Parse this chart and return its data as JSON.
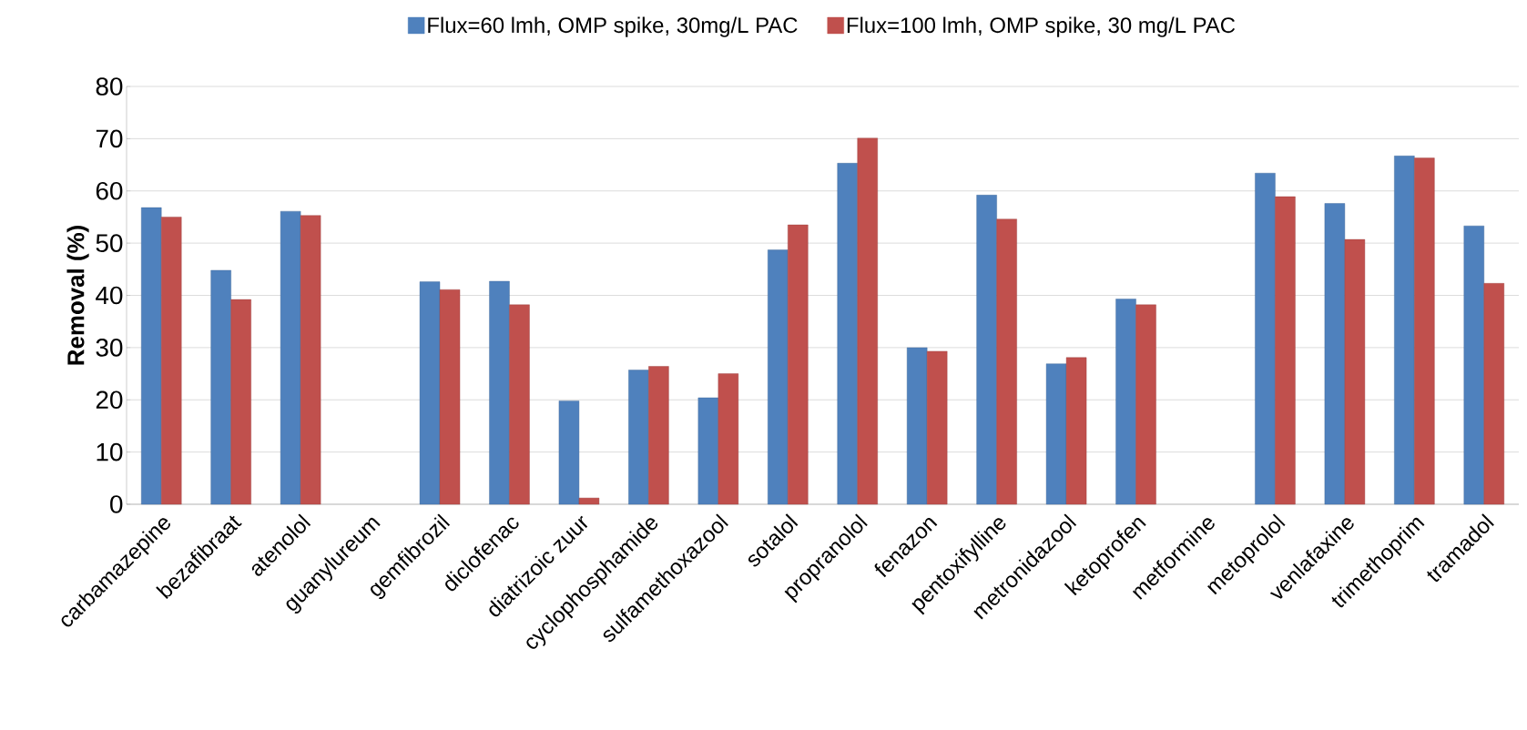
{
  "chart_data": {
    "type": "bar",
    "ylabel": "Removal (%)",
    "categories": [
      "carbamazepine",
      "bezafibraat",
      "atenolol",
      "guanylureum",
      "gemfibrozil",
      "diclofenac",
      "diatrizoic zuur",
      "cyclophosphamide",
      "sulfamethoxazool",
      "sotalol",
      "propranolol",
      "fenazon",
      "pentoxifylline",
      "metronidazool",
      "ketoprofen",
      "metformine",
      "metoprolol",
      "venlafaxine",
      "trimethoprim",
      "tramadol"
    ],
    "series": [
      {
        "name": "Flux=60 lmh, OMP spike, 30mg/L PAC",
        "color": "#4f81bd",
        "values": [
          56.8,
          44.8,
          56.1,
          null,
          42.6,
          42.7,
          19.8,
          25.7,
          20.4,
          48.7,
          65.3,
          30.0,
          59.2,
          26.9,
          39.3,
          null,
          63.4,
          57.6,
          66.7,
          53.3
        ]
      },
      {
        "name": "Flux=100 lmh, OMP spike, 30 mg/L PAC",
        "color": "#c0504d",
        "values": [
          55.0,
          39.2,
          55.3,
          null,
          41.1,
          38.2,
          1.2,
          26.4,
          25.0,
          53.5,
          70.1,
          29.3,
          54.6,
          28.1,
          38.2,
          null,
          58.9,
          50.7,
          66.3,
          42.3
        ]
      }
    ],
    "ylim": [
      0,
      80
    ],
    "yticks": [
      0,
      10,
      20,
      30,
      40,
      50,
      60,
      70,
      80
    ],
    "grid": "y",
    "legend": "top"
  }
}
